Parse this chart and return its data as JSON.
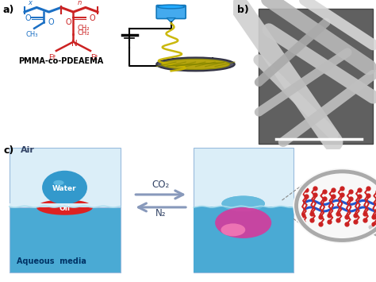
{
  "bg_color": "#ffffff",
  "panel_a_label": "a)",
  "panel_b_label": "b)",
  "panel_c_label": "c)",
  "pmma_label": "PMMA-co-PDEAEMA",
  "air_label": "Air",
  "aqueous_label": "Aqueous  media",
  "water_label": "Water",
  "oil_label": "Oil",
  "co2_label": "CO₂",
  "n2_label": "N₂",
  "blue_chain": "#1a6fc4",
  "red_chain": "#cc2222",
  "nozzle_blue": "#3399dd",
  "spiral_color": "#c8b400",
  "collector_dark": "#444466",
  "air_bg": "#e8f4fc",
  "water_bg": "#4aaad4",
  "water_drop_color": "#3399cc",
  "oil_red": "#dd2222",
  "oil_pink": "#e060a0",
  "oil_pink_light": "#ff99cc",
  "arrow_fill": "#b0bcd8",
  "mag_edge": "#aaaaaa",
  "sem_bg": "#787878"
}
